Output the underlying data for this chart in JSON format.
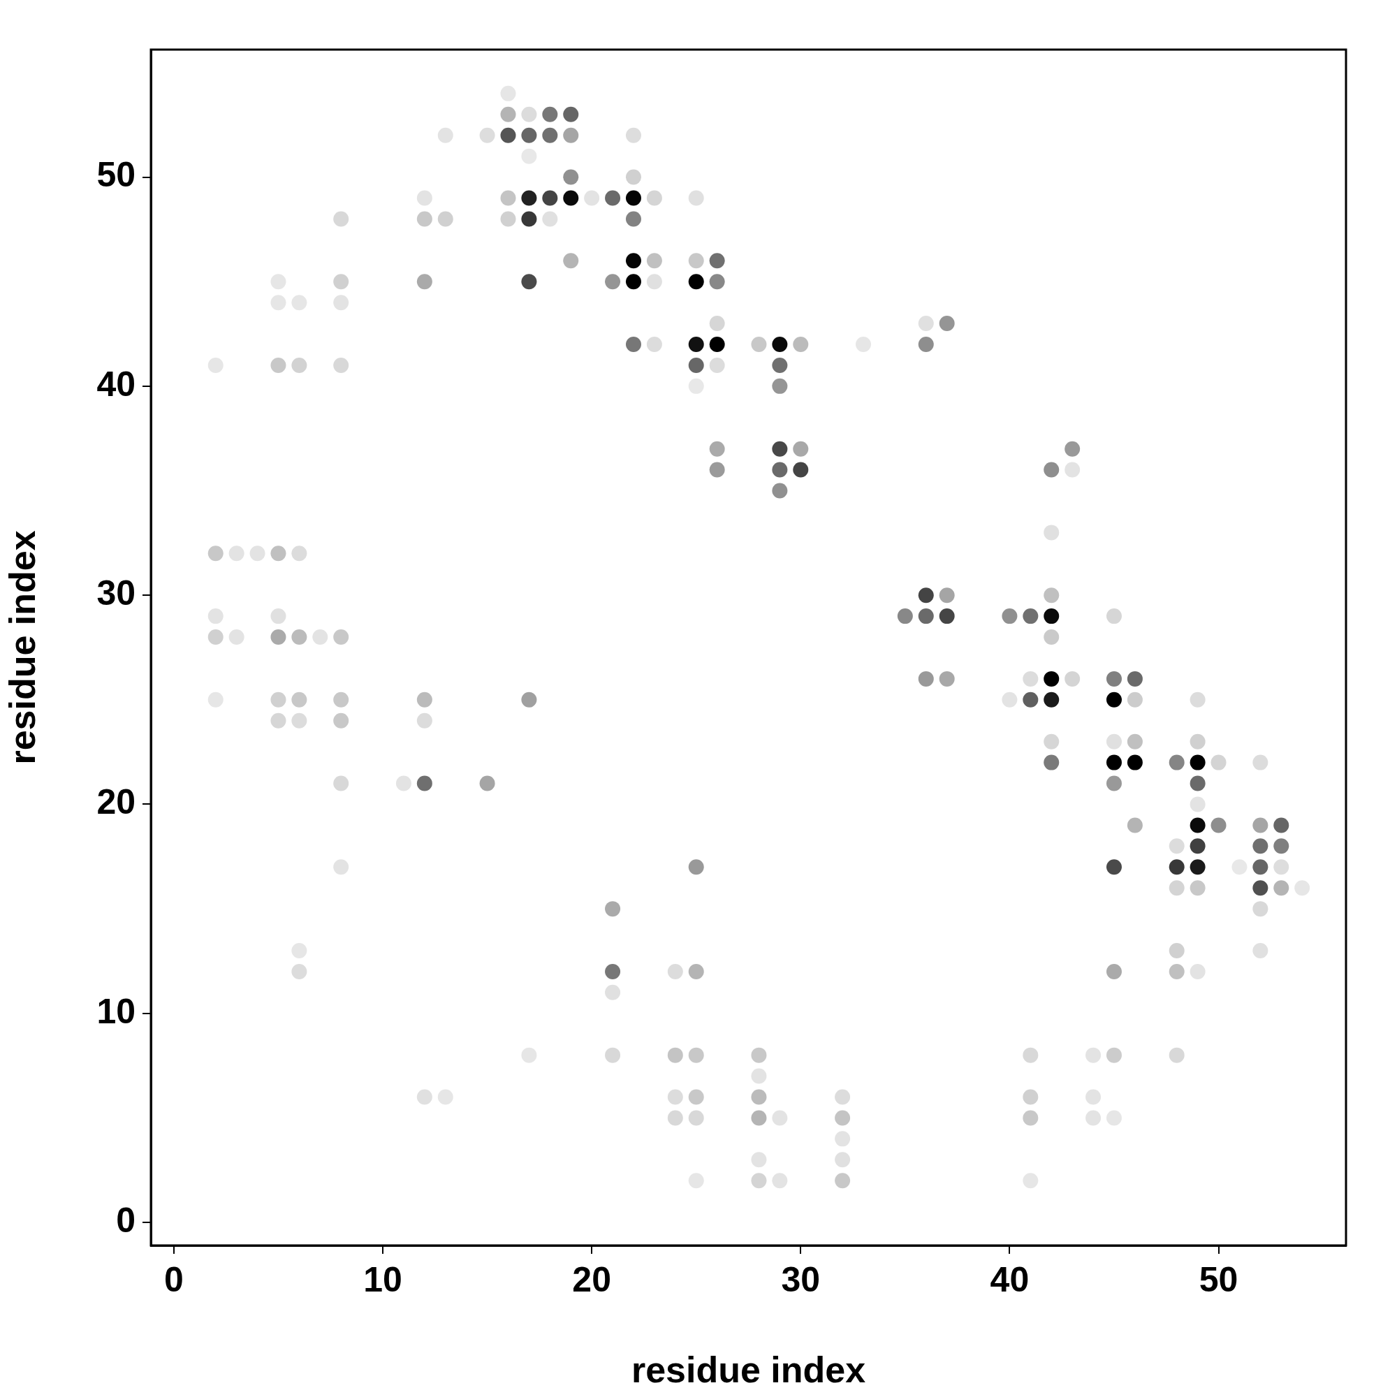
{
  "chart_data": {
    "type": "scatter",
    "xlabel": "residue index",
    "ylabel": "residue index",
    "xlim": [
      -1.1,
      56.1
    ],
    "ylim": [
      -1.1,
      56.1
    ],
    "xticks": [
      0,
      10,
      20,
      30,
      40,
      50
    ],
    "yticks": [
      0,
      10,
      20,
      30,
      40,
      50
    ],
    "grid": false,
    "legend": false,
    "marker": "circle",
    "x": [
      16,
      16,
      17,
      18,
      19,
      13,
      15,
      16,
      17,
      18,
      19,
      22,
      17,
      19,
      22,
      12,
      16,
      17,
      18,
      19,
      20,
      21,
      22,
      23,
      25,
      8,
      12,
      13,
      16,
      17,
      18,
      22,
      19,
      22,
      23,
      25,
      26,
      5,
      8,
      12,
      17,
      21,
      22,
      23,
      25,
      26,
      5,
      6,
      8,
      26,
      36,
      37,
      22,
      23,
      25,
      26,
      28,
      29,
      30,
      33,
      36,
      2,
      5,
      6,
      8,
      25,
      26,
      29,
      25,
      29,
      26,
      29,
      30,
      43,
      26,
      29,
      30,
      42,
      43,
      29,
      42,
      2,
      3,
      4,
      5,
      6,
      36,
      37,
      42,
      2,
      5,
      35,
      36,
      37,
      40,
      41,
      42,
      45,
      2,
      3,
      5,
      6,
      7,
      8,
      42,
      36,
      37,
      41,
      42,
      43,
      45,
      46,
      2,
      5,
      6,
      8,
      12,
      17,
      40,
      41,
      42,
      45,
      46,
      49,
      5,
      6,
      8,
      12,
      42,
      45,
      46,
      49,
      42,
      45,
      46,
      48,
      49,
      50,
      52,
      8,
      11,
      12,
      15,
      45,
      49,
      49,
      46,
      49,
      50,
      52,
      53,
      48,
      49,
      52,
      53,
      8,
      25,
      45,
      48,
      49,
      51,
      52,
      53,
      48,
      49,
      52,
      53,
      54,
      21,
      52,
      6,
      48,
      52,
      6,
      21,
      24,
      25,
      45,
      48,
      49,
      21,
      17,
      21,
      24,
      25,
      28,
      41,
      44,
      45,
      48,
      28,
      12,
      13,
      24,
      25,
      28,
      32,
      41,
      44,
      24,
      25,
      28,
      29,
      32,
      41,
      44,
      45,
      32,
      28,
      32,
      25,
      28,
      29,
      32,
      41
    ],
    "values": [
      54,
      53,
      53,
      53,
      53,
      52,
      52,
      52,
      52,
      52,
      52,
      52,
      51,
      50,
      50,
      49,
      49,
      49,
      49,
      49,
      49,
      49,
      49,
      49,
      49,
      48,
      48,
      48,
      48,
      48,
      48,
      48,
      46,
      46,
      46,
      46,
      46,
      45,
      45,
      45,
      45,
      45,
      45,
      45,
      45,
      45,
      44,
      44,
      44,
      43,
      43,
      43,
      42,
      42,
      42,
      42,
      42,
      42,
      42,
      42,
      42,
      41,
      41,
      41,
      41,
      41,
      41,
      41,
      40,
      40,
      37,
      37,
      37,
      37,
      36,
      36,
      36,
      36,
      36,
      35,
      33,
      32,
      32,
      32,
      32,
      32,
      30,
      30,
      30,
      29,
      29,
      29,
      29,
      29,
      29,
      29,
      29,
      29,
      28,
      28,
      28,
      28,
      28,
      28,
      28,
      26,
      26,
      26,
      26,
      26,
      26,
      26,
      25,
      25,
      25,
      25,
      25,
      25,
      25,
      25,
      25,
      25,
      25,
      25,
      24,
      24,
      24,
      24,
      23,
      23,
      23,
      23,
      22,
      22,
      22,
      22,
      22,
      22,
      22,
      21,
      21,
      21,
      21,
      21,
      21,
      20,
      19,
      19,
      19,
      19,
      19,
      18,
      18,
      18,
      18,
      17,
      17,
      17,
      17,
      17,
      17,
      17,
      17,
      16,
      16,
      16,
      16,
      16,
      15,
      15,
      13,
      13,
      13,
      12,
      12,
      12,
      12,
      12,
      12,
      12,
      11,
      8,
      8,
      8,
      8,
      8,
      8,
      8,
      8,
      8,
      7,
      6,
      6,
      6,
      6,
      6,
      6,
      6,
      6,
      5,
      5,
      5,
      5,
      5,
      5,
      5,
      5,
      4,
      3,
      3,
      2,
      2,
      2,
      2,
      2
    ],
    "colors": [
      "#e6e6e6",
      "#b4b4b4",
      "#dcdcdc",
      "#777777",
      "#666666",
      "#e3e3e3",
      "#dddddd",
      "#555555",
      "#666666",
      "#707070",
      "#a5a5a5",
      "#dddddd",
      "#e8e8e8",
      "#909090",
      "#d0d0d0",
      "#e3e3e3",
      "#c4c4c4",
      "#222222",
      "#444444",
      "#0a0a0a",
      "#e3e3e3",
      "#6a6a6a",
      "#050505",
      "#d5d5d5",
      "#e0e0e0",
      "#d8d8d8",
      "#c8c8c8",
      "#d0d0d0",
      "#d0d0d0",
      "#383838",
      "#e0e0e0",
      "#828282",
      "#b4b4b4",
      "#050505",
      "#c0c0c0",
      "#c8c8c8",
      "#707070",
      "#e6e6e6",
      "#d0d0d0",
      "#aaaaaa",
      "#4a4a4a",
      "#959595",
      "#000000",
      "#e0e0e0",
      "#000000",
      "#888888",
      "#e6e6e6",
      "#e6e6e6",
      "#e3e3e3",
      "#d6d6d6",
      "#e0e0e0",
      "#959595",
      "#777777",
      "#dcdcdc",
      "#111111",
      "#000000",
      "#c8c8c8",
      "#0a0a0a",
      "#bbbbbb",
      "#e6e6e6",
      "#8e8e8e",
      "#e6e6e6",
      "#c8c8c8",
      "#d2d2d2",
      "#d8d8d8",
      "#676767",
      "#dcdcdc",
      "#707070",
      "#e8e8e8",
      "#959595",
      "#aaaaaa",
      "#484848",
      "#a8a8a8",
      "#999999",
      "#9a9a9a",
      "#6a6a6a",
      "#444444",
      "#8e8e8e",
      "#e3e3e3",
      "#909090",
      "#e0e0e0",
      "#c8c8c8",
      "#e3e3e3",
      "#e3e3e3",
      "#c0c0c0",
      "#dcdcdc",
      "#444444",
      "#a5a5a5",
      "#c0c0c0",
      "#e3e3e3",
      "#e0e0e0",
      "#888888",
      "#6a6a6a",
      "#454545",
      "#909090",
      "#707070",
      "#0a0a0a",
      "#d6d6d6",
      "#d0d0d0",
      "#e3e3e3",
      "#aaaaaa",
      "#bbbbbb",
      "#e3e3e3",
      "#c8c8c8",
      "#cacaca",
      "#999999",
      "#a8a8a8",
      "#dcdcdc",
      "#000000",
      "#d4d4d4",
      "#808080",
      "#6a6a6a",
      "#e6e6e6",
      "#d0d0d0",
      "#c8c8c8",
      "#c8c8c8",
      "#bbbbbb",
      "#a0a0a0",
      "#e3e3e3",
      "#5f5f5f",
      "#1a1a1a",
      "#000000",
      "#cccccc",
      "#dcdcdc",
      "#d6d6d6",
      "#dcdcdc",
      "#c8c8c8",
      "#dcdcdc",
      "#d6d6d6",
      "#e0e0e0",
      "#c0c0c0",
      "#d0d0d0",
      "#7a7a7a",
      "#000000",
      "#000000",
      "#858585",
      "#000000",
      "#d4d4d4",
      "#dcdcdc",
      "#d8d8d8",
      "#e3e3e3",
      "#6f6f6f",
      "#a5a5a5",
      "#999999",
      "#6a6a6a",
      "#e3e3e3",
      "#b4b4b4",
      "#0a0a0a",
      "#8e8e8e",
      "#a5a5a5",
      "#666666",
      "#dcdcdc",
      "#404040",
      "#6f6f6f",
      "#7f7f7f",
      "#e3e3e3",
      "#999999",
      "#4a4a4a",
      "#383838",
      "#1a1a1a",
      "#e8e8e8",
      "#666666",
      "#dddddd",
      "#d4d4d4",
      "#c8c8c8",
      "#505050",
      "#b4b4b4",
      "#e6e6e6",
      "#aaaaaa",
      "#d8d8d8",
      "#e6e6e6",
      "#d0d0d0",
      "#e0e0e0",
      "#dcdcdc",
      "#777777",
      "#dcdcdc",
      "#b4b4b4",
      "#aaaaaa",
      "#c0c0c0",
      "#e3e3e3",
      "#e0e0e0",
      "#e6e6e6",
      "#d8d8d8",
      "#c4c4c4",
      "#c8c8c8",
      "#c8c8c8",
      "#d8d8d8",
      "#e3e3e3",
      "#cccccc",
      "#d8d8d8",
      "#e3e3e3",
      "#e0e0e0",
      "#e6e6e6",
      "#dcdcdc",
      "#c8c8c8",
      "#bbbbbb",
      "#dcdcdc",
      "#d0d0d0",
      "#e3e3e3",
      "#d8d8d8",
      "#d8d8d8",
      "#b4b4b4",
      "#e3e3e3",
      "#c4c4c4",
      "#c8c8c8",
      "#e3e3e3",
      "#e6e6e6",
      "#e3e3e3",
      "#e3e3e3",
      "#e0e0e0",
      "#e6e6e6",
      "#d4d4d4",
      "#e3e3e3",
      "#c8c8c8",
      "#e6e6e6"
    ]
  }
}
